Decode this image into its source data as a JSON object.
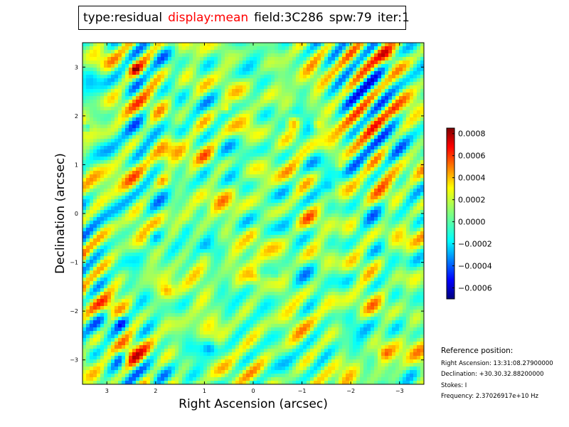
{
  "title": {
    "type": "type:residual",
    "display": "display:mean",
    "field": "field:3C286",
    "spw": "spw:79",
    "iter": "iter:1",
    "display_color": "#ff0000"
  },
  "chart_data": {
    "type": "heatmap",
    "xlabel": "Right Ascension (arcsec)",
    "ylabel": "Declination (arcsec)",
    "xlim": [
      3.5,
      -3.5
    ],
    "ylim": [
      -3.5,
      3.5
    ],
    "x_ticks": [
      3,
      2,
      1,
      0,
      -1,
      -2,
      -3
    ],
    "x_tick_labels": [
      "3",
      "2",
      "1",
      "0",
      "−1",
      "−2",
      "−3"
    ],
    "y_ticks": [
      3,
      2,
      1,
      0,
      -1,
      -2,
      -3
    ],
    "y_tick_labels": [
      "3",
      "2",
      "1",
      "0",
      "−1",
      "−2",
      "−3"
    ],
    "colormap": "jet",
    "colorbar": {
      "range": [
        -0.0007,
        0.00085
      ],
      "ticks": [
        0.0008,
        0.0006,
        0.0004,
        0.0002,
        0.0,
        -0.0002,
        -0.0004,
        -0.0006
      ],
      "tick_labels": [
        "0.0008",
        "0.0006",
        "0.0004",
        "0.0002",
        "0.0000",
        "−0.0002",
        "−0.0004",
        "−0.0006"
      ]
    },
    "grid": false,
    "legend": "none"
  },
  "reference": {
    "heading": "Reference position:",
    "ra": "Right Ascension: 13:31:08.27900000",
    "dec": "Declination: +30.30.32.88200000",
    "stokes": "Stokes: I",
    "freq": "Frequency: 2.37026917e+10 Hz"
  }
}
